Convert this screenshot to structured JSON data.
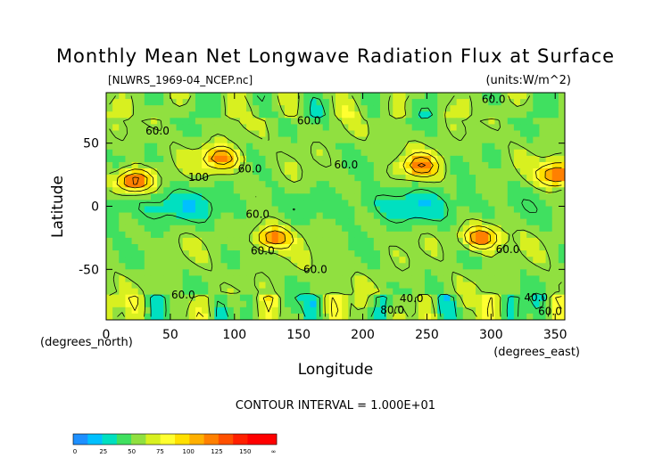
{
  "chart_data": {
    "type": "heatmap",
    "title": "Monthly Mean Net Longwave Radiation Flux at Surface",
    "file_label": "[NLWRS_1969-04_NCEP.nc]",
    "units_label": "(units:W/m^2)",
    "xlabel": "Longitude",
    "ylabel": "Latitude",
    "x_unit_note": "(degrees_east)",
    "y_unit_note": "(degrees_north)",
    "xlim": [
      0,
      357.5
    ],
    "ylim": [
      -90,
      90
    ],
    "x_ticks": [
      0,
      50,
      100,
      150,
      200,
      250,
      300,
      350
    ],
    "y_ticks": [
      50,
      0,
      -50
    ],
    "contour_interval_text": "CONTOUR INTERVAL = 1.000E+01",
    "contour_labels": [
      {
        "lon": 158,
        "lat": 65,
        "text": "60.0"
      },
      {
        "lon": 40,
        "lat": 57,
        "text": "60.0"
      },
      {
        "lon": 187,
        "lat": 30,
        "text": "60.0"
      },
      {
        "lon": 72,
        "lat": 20,
        "text": "100"
      },
      {
        "lon": 112,
        "lat": 27,
        "text": "60.0"
      },
      {
        "lon": 118,
        "lat": -9,
        "text": "60.0"
      },
      {
        "lon": 122,
        "lat": -38,
        "text": "60.0"
      },
      {
        "lon": 163,
        "lat": -53,
        "text": "60.0"
      },
      {
        "lon": 313,
        "lat": -37,
        "text": "60.0"
      },
      {
        "lon": 302,
        "lat": 82,
        "text": "60.0"
      },
      {
        "lon": 60,
        "lat": -73,
        "text": "60.0"
      },
      {
        "lon": 238,
        "lat": -76,
        "text": "40.0"
      },
      {
        "lon": 223,
        "lat": -85,
        "text": "80.0"
      },
      {
        "lon": 335,
        "lat": -75,
        "text": "40.0"
      },
      {
        "lon": 346,
        "lat": -86,
        "text": "60.0"
      }
    ],
    "features": [
      {
        "lon": 22,
        "lat": 20,
        "value": 140
      },
      {
        "lon": 90,
        "lat": 38,
        "value": 125
      },
      {
        "lon": 130,
        "lat": -25,
        "value": 125
      },
      {
        "lon": 245,
        "lat": 32,
        "value": 120
      },
      {
        "lon": 292,
        "lat": -25,
        "value": 130
      },
      {
        "lon": 352,
        "lat": 25,
        "value": 135
      }
    ],
    "colorbar": {
      "labels": [
        "0",
        "25",
        "50",
        "75",
        "100",
        "125",
        "150",
        "∞"
      ],
      "colors": [
        "#1e90ff",
        "#00c0ff",
        "#00e0c0",
        "#40e060",
        "#90e040",
        "#d8f020",
        "#ffff30",
        "#ffe000",
        "#ffb000",
        "#ff8000",
        "#ff5000",
        "#ff2000",
        "#ff0000",
        "#ff0000"
      ]
    }
  }
}
